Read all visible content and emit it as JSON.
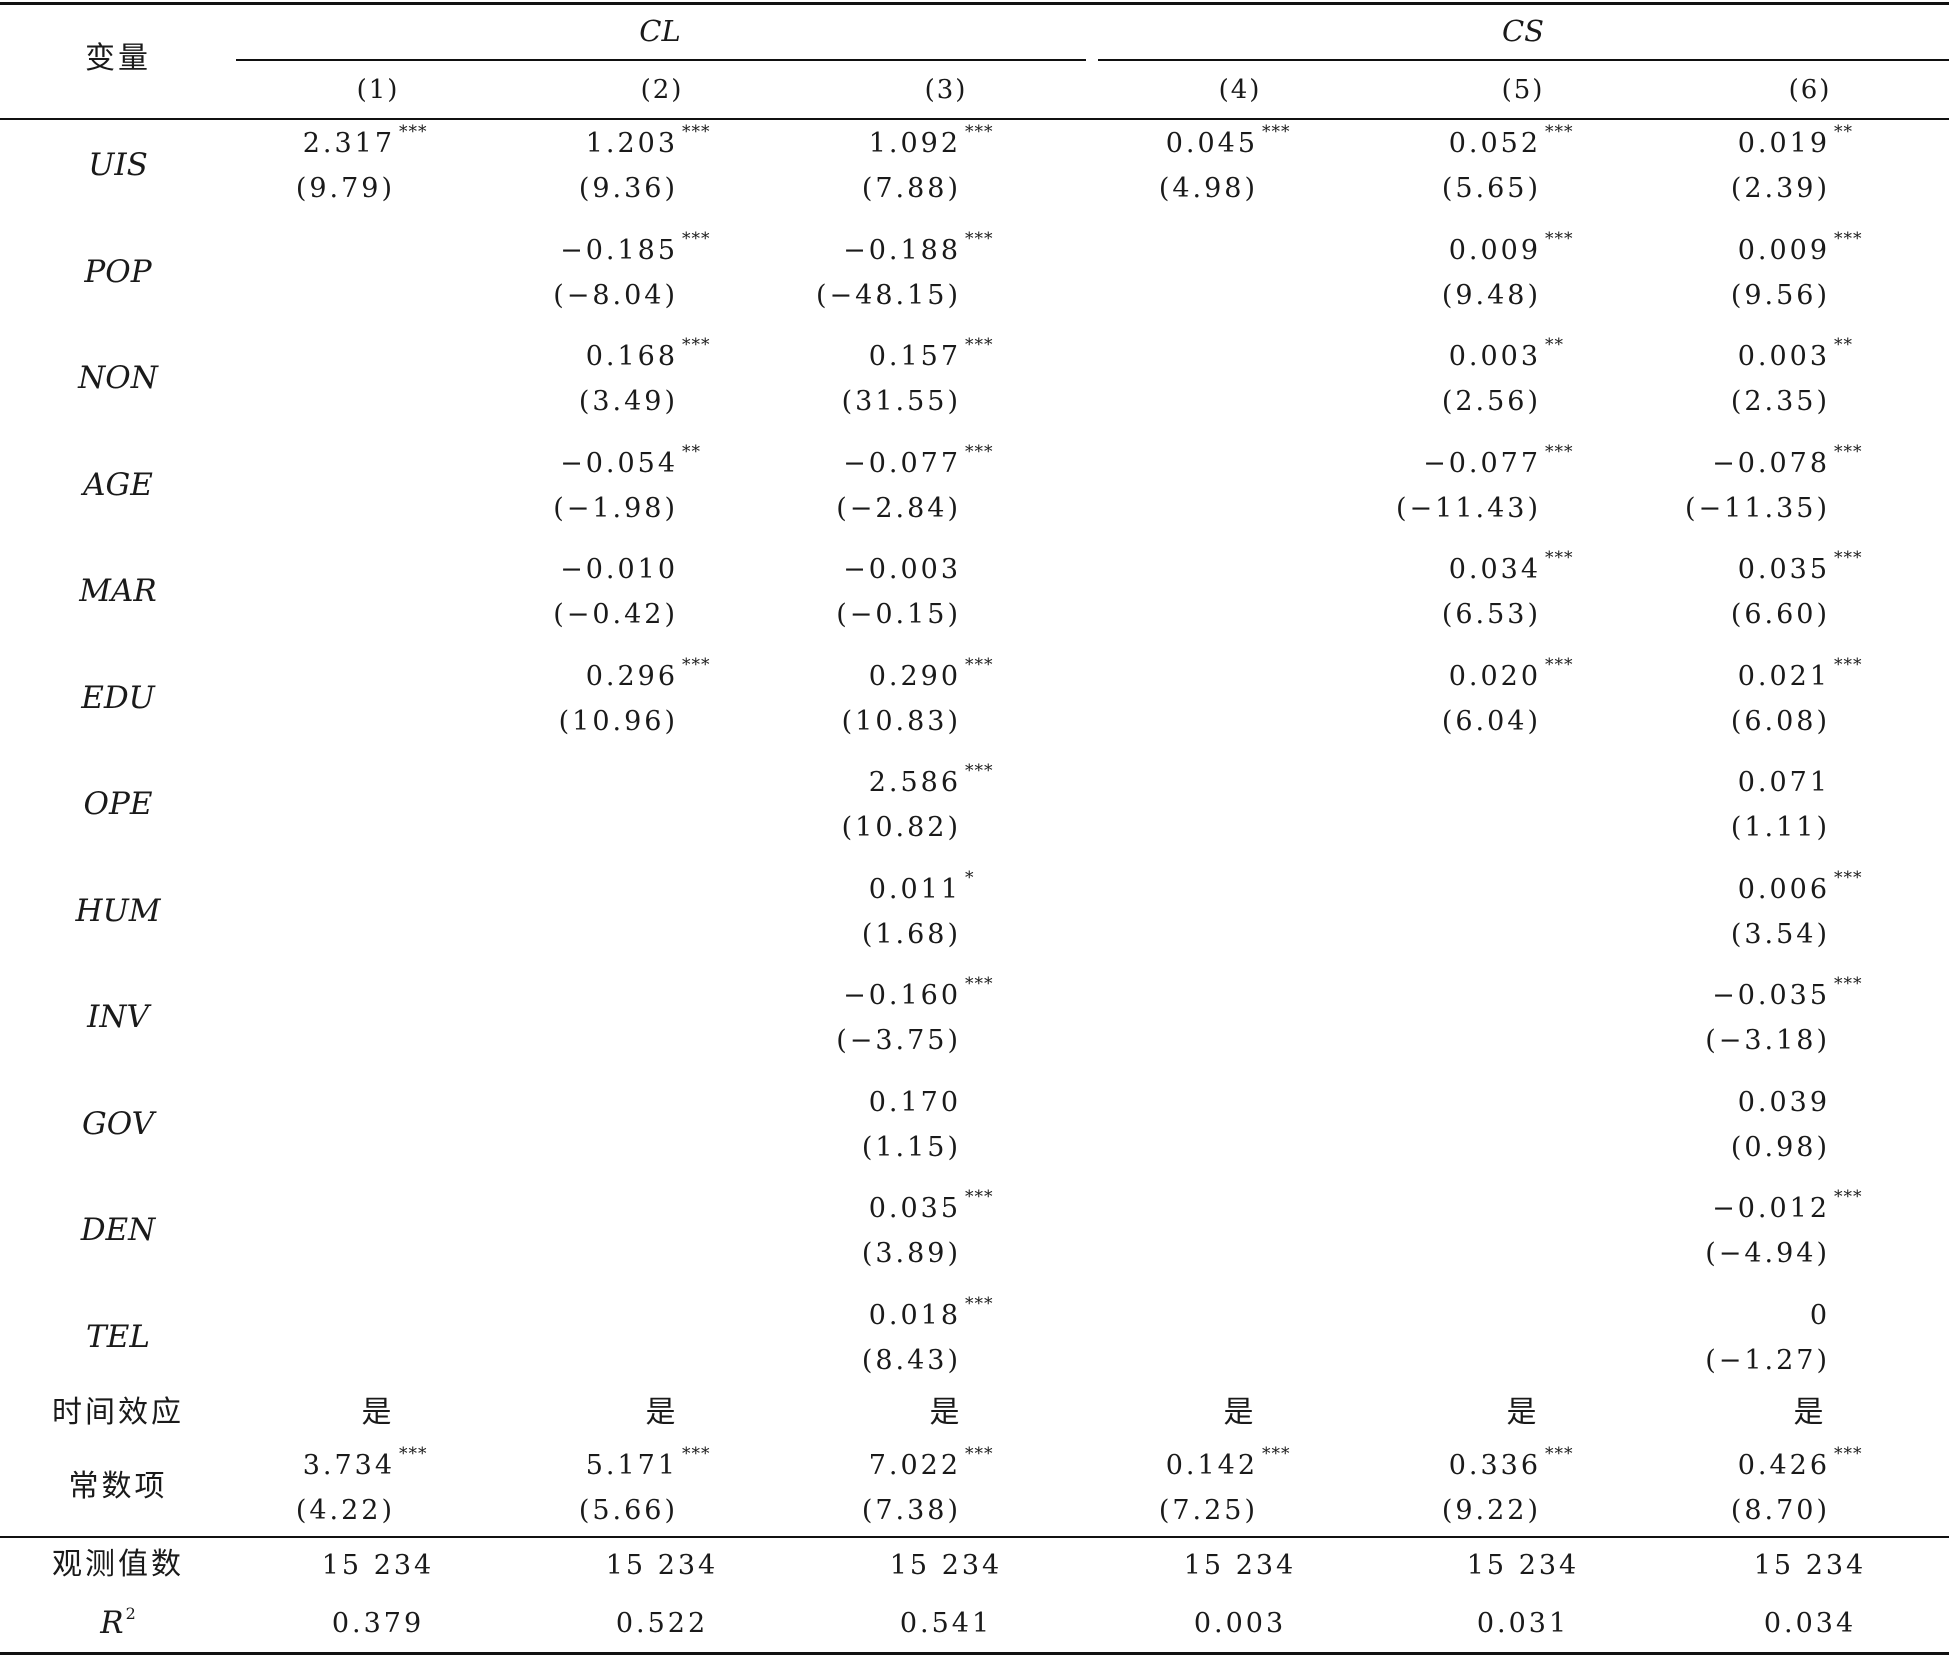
{
  "header": {
    "variable_label": "变量",
    "groups": [
      "CL",
      "CS"
    ],
    "columns": [
      "(1)",
      "(2)",
      "(3)",
      "(4)",
      "(5)",
      "(6)"
    ]
  },
  "rows": [
    {
      "name": "UIS",
      "coef": [
        "2.317",
        "1.203",
        "1.092",
        "0.045",
        "0.052",
        "0.019"
      ],
      "stars": [
        "***",
        "***",
        "***",
        "***",
        "***",
        "**"
      ],
      "t": [
        "(9.79)",
        "(9.36)",
        "(7.88)",
        "(4.98)",
        "(5.65)",
        "(2.39)"
      ]
    },
    {
      "name": "POP",
      "coef": [
        "",
        "−0.185",
        "−0.188",
        "",
        "0.009",
        "0.009"
      ],
      "stars": [
        "",
        "***",
        "***",
        "",
        "***",
        "***"
      ],
      "t": [
        "",
        "(−8.04)",
        "(−48.15)",
        "",
        "(9.48)",
        "(9.56)"
      ]
    },
    {
      "name": "NON",
      "coef": [
        "",
        "0.168",
        "0.157",
        "",
        "0.003",
        "0.003"
      ],
      "stars": [
        "",
        "***",
        "***",
        "",
        "**",
        "**"
      ],
      "t": [
        "",
        "(3.49)",
        "(31.55)",
        "",
        "(2.56)",
        "(2.35)"
      ]
    },
    {
      "name": "AGE",
      "coef": [
        "",
        "−0.054",
        "−0.077",
        "",
        "−0.077",
        "−0.078"
      ],
      "stars": [
        "",
        "**",
        "***",
        "",
        "***",
        "***"
      ],
      "t": [
        "",
        "(−1.98)",
        "(−2.84)",
        "",
        "(−11.43)",
        "(−11.35)"
      ]
    },
    {
      "name": "MAR",
      "coef": [
        "",
        "−0.010",
        "−0.003",
        "",
        "0.034",
        "0.035"
      ],
      "stars": [
        "",
        "",
        "",
        "",
        "***",
        "***"
      ],
      "t": [
        "",
        "(−0.42)",
        "(−0.15)",
        "",
        "(6.53)",
        "(6.60)"
      ]
    },
    {
      "name": "EDU",
      "coef": [
        "",
        "0.296",
        "0.290",
        "",
        "0.020",
        "0.021"
      ],
      "stars": [
        "",
        "***",
        "***",
        "",
        "***",
        "***"
      ],
      "t": [
        "",
        "(10.96)",
        "(10.83)",
        "",
        "(6.04)",
        "(6.08)"
      ]
    },
    {
      "name": "OPE",
      "coef": [
        "",
        "",
        "2.586",
        "",
        "",
        "0.071"
      ],
      "stars": [
        "",
        "",
        "***",
        "",
        "",
        ""
      ],
      "t": [
        "",
        "",
        "(10.82)",
        "",
        "",
        "(1.11)"
      ]
    },
    {
      "name": "HUM",
      "coef": [
        "",
        "",
        "0.011",
        "",
        "",
        "0.006"
      ],
      "stars": [
        "",
        "",
        "*",
        "",
        "",
        "***"
      ],
      "t": [
        "",
        "",
        "(1.68)",
        "",
        "",
        "(3.54)"
      ]
    },
    {
      "name": "INV",
      "coef": [
        "",
        "",
        "−0.160",
        "",
        "",
        "−0.035"
      ],
      "stars": [
        "",
        "",
        "***",
        "",
        "",
        "***"
      ],
      "t": [
        "",
        "",
        "(−3.75)",
        "",
        "",
        "(−3.18)"
      ]
    },
    {
      "name": "GOV",
      "coef": [
        "",
        "",
        "0.170",
        "",
        "",
        "0.039"
      ],
      "stars": [
        "",
        "",
        "",
        "",
        "",
        ""
      ],
      "t": [
        "",
        "",
        "(1.15)",
        "",
        "",
        "(0.98)"
      ]
    },
    {
      "name": "DEN",
      "coef": [
        "",
        "",
        "0.035",
        "",
        "",
        "−0.012"
      ],
      "stars": [
        "",
        "",
        "***",
        "",
        "",
        "***"
      ],
      "t": [
        "",
        "",
        "(3.89)",
        "",
        "",
        "(−4.94)"
      ]
    },
    {
      "name": "TEL",
      "coef": [
        "",
        "",
        "0.018",
        "",
        "",
        "0"
      ],
      "stars": [
        "",
        "",
        "***",
        "",
        "",
        ""
      ],
      "t": [
        "",
        "",
        "(8.43)",
        "",
        "",
        "(−1.27)"
      ]
    }
  ],
  "time_effect": {
    "label": "时间效应",
    "values": [
      "是",
      "是",
      "是",
      "是",
      "是",
      "是"
    ]
  },
  "constant": {
    "label": "常数项",
    "coef": [
      "3.734",
      "5.171",
      "7.022",
      "0.142",
      "0.336",
      "0.426"
    ],
    "stars": [
      "***",
      "***",
      "***",
      "***",
      "***",
      "***"
    ],
    "t": [
      "(4.22)",
      "(5.66)",
      "(7.38)",
      "(7.25)",
      "(9.22)",
      "(8.70)"
    ]
  },
  "observations": {
    "label": "观测值数",
    "values": [
      "15 234",
      "15 234",
      "15 234",
      "15 234",
      "15 234",
      "15 234"
    ]
  },
  "r2": {
    "label": "R",
    "label_sup": "2",
    "values": [
      "0.379",
      "0.522",
      "0.541",
      "0.003",
      "0.031",
      "0.034"
    ]
  }
}
